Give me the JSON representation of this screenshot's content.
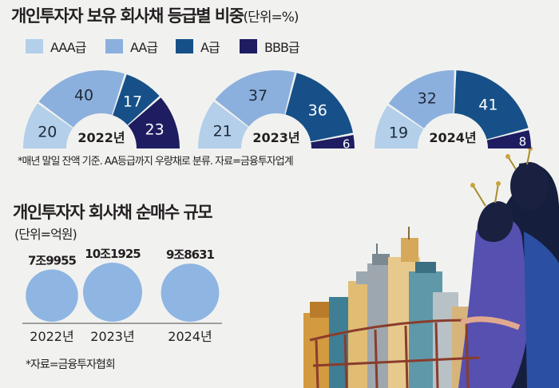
{
  "title": "개인투자자 보유 회사채 등급별 비중",
  "title_unit": "(단위=%)",
  "colors": {
    "AAA급": "#b3cfe9",
    "AA급": "#8cb0dd",
    "A급": "#175088",
    "BBB급": "#1e1d61",
    "bubble": "#8fb5e3"
  },
  "legend": [
    "AAA급",
    "AA급",
    "A급",
    "BBB급"
  ],
  "note1": "*매년 말일 잔액 기준. AA등급까지 우량채로 분류. 자료=금융투자업계",
  "title2": "개인투자자 회사채 순매수 규모",
  "unit2": "(단위=억원)",
  "note2": "*자료=금융투자협회",
  "chart_data": [
    {
      "type": "pie",
      "subtype": "half-donut",
      "title": "개인투자자 보유 회사채 등급별 비중",
      "unit": "%",
      "categories": [
        "AAA급",
        "AA급",
        "A급",
        "BBB급"
      ],
      "series": [
        {
          "name": "2022년",
          "values": [
            20,
            40,
            17,
            23
          ]
        },
        {
          "name": "2023년",
          "values": [
            21,
            37,
            36,
            6
          ]
        },
        {
          "name": "2024년",
          "values": [
            19,
            32,
            41,
            8
          ]
        }
      ]
    },
    {
      "type": "scatter",
      "subtype": "bubble",
      "title": "개인투자자 회사채 순매수 규모",
      "unit": "억원",
      "categories": [
        "2022년",
        "2023년",
        "2024년"
      ],
      "values": [
        79955,
        101925,
        98631
      ],
      "labels": [
        "7조9955",
        "10조1925",
        "9조8631"
      ]
    }
  ]
}
